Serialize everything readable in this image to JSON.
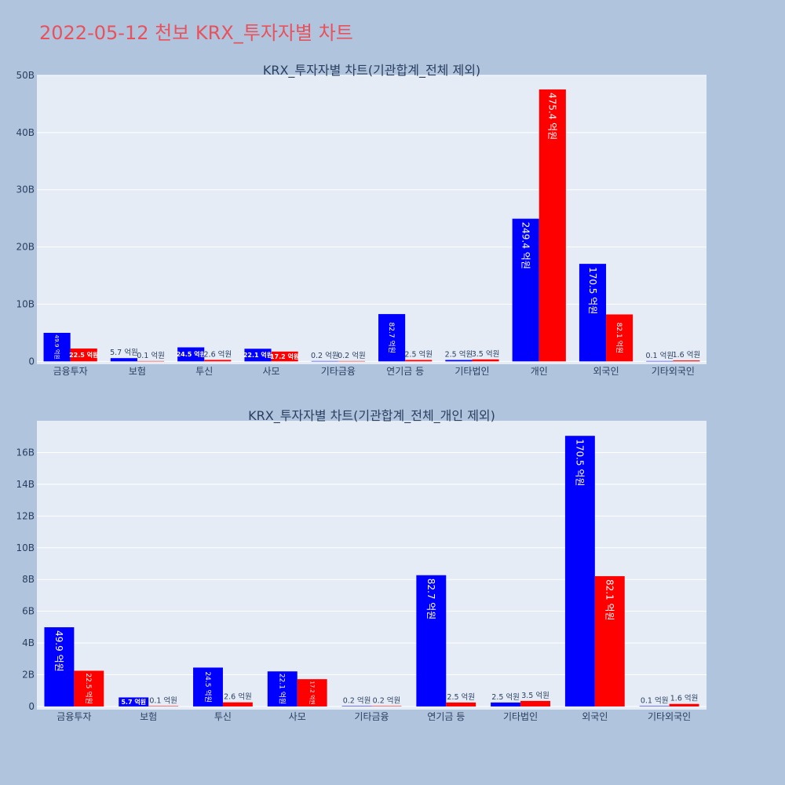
{
  "page_title": "2022-05-12 천보 KRX_투자자별 차트",
  "colors": {
    "background": "#b0c4de",
    "plot_bg": "#e5ecf6",
    "title": "#e8525c",
    "buy": "#0000ff",
    "sell": "#ff0000"
  },
  "chart_data": [
    {
      "type": "bar",
      "title": "KRX_투자자별 차트(기관합계_전체 제외)",
      "categories": [
        "금융투자",
        "보험",
        "투신",
        "사모",
        "기타금융",
        "연기금 등",
        "기타법인",
        "개인",
        "외국인",
        "기타외국인"
      ],
      "series": [
        {
          "color": "#0000ff",
          "values": [
            4990000000,
            570000000,
            2450000000,
            2210000000,
            20000000,
            8270000000,
            250000000,
            24940000000,
            17050000000,
            10000000
          ],
          "labels": [
            "49.9 억원",
            "5.7 억원",
            "24.5 억원",
            "22.1 억원",
            "0.2 억원",
            "82.7 억원",
            "2.5 억원",
            "249.4 억원",
            "170.5 억원",
            "0.1 억원"
          ]
        },
        {
          "color": "#ff0000",
          "values": [
            2250000000,
            10000000,
            260000000,
            1720000000,
            20000000,
            250000000,
            350000000,
            47540000000,
            8210000000,
            160000000
          ],
          "labels": [
            "22.5 억원",
            "0.1 억원",
            "2.6 억원",
            "17.2 억원",
            "0.2 억원",
            "2.5 억원",
            "3.5 억원",
            "475.4 억원",
            "82.1 억원",
            "1.6 억원"
          ]
        }
      ],
      "ylim": [
        -500000000,
        50000000000
      ],
      "yticks": [
        0,
        10000000000,
        20000000000,
        30000000000,
        40000000000,
        50000000000
      ],
      "ytick_labels": [
        "0",
        "10B",
        "20B",
        "30B",
        "40B",
        "50B"
      ],
      "grid": true
    },
    {
      "type": "bar",
      "title": "KRX_투자자별 차트(기관합계_전체_개인 제외)",
      "categories": [
        "금융투자",
        "보험",
        "투신",
        "사모",
        "기타금융",
        "연기금 등",
        "기타법인",
        "외국인",
        "기타외국인"
      ],
      "series": [
        {
          "color": "#0000ff",
          "values": [
            4990000000,
            570000000,
            2450000000,
            2210000000,
            20000000,
            8270000000,
            250000000,
            17050000000,
            10000000
          ],
          "labels": [
            "49.9 억원",
            "5.7 억원",
            "24.5 억원",
            "22.1 억원",
            "0.2 억원",
            "82.7 억원",
            "2.5 억원",
            "170.5 억원",
            "0.1 억원"
          ]
        },
        {
          "color": "#ff0000",
          "values": [
            2250000000,
            10000000,
            260000000,
            1720000000,
            20000000,
            250000000,
            350000000,
            8210000000,
            160000000
          ],
          "labels": [
            "22.5 억원",
            "0.1 억원",
            "2.6 억원",
            "17.2 억원",
            "0.2 억원",
            "2.5 억원",
            "3.5 억원",
            "82.1 억원",
            "1.6 억원"
          ]
        }
      ],
      "ylim": [
        -200000000,
        18000000000
      ],
      "yticks": [
        0,
        2000000000,
        4000000000,
        6000000000,
        8000000000,
        10000000000,
        12000000000,
        14000000000,
        16000000000
      ],
      "ytick_labels": [
        "0",
        "2B",
        "4B",
        "6B",
        "8B",
        "10B",
        "12B",
        "14B",
        "16B"
      ],
      "grid": true
    }
  ]
}
